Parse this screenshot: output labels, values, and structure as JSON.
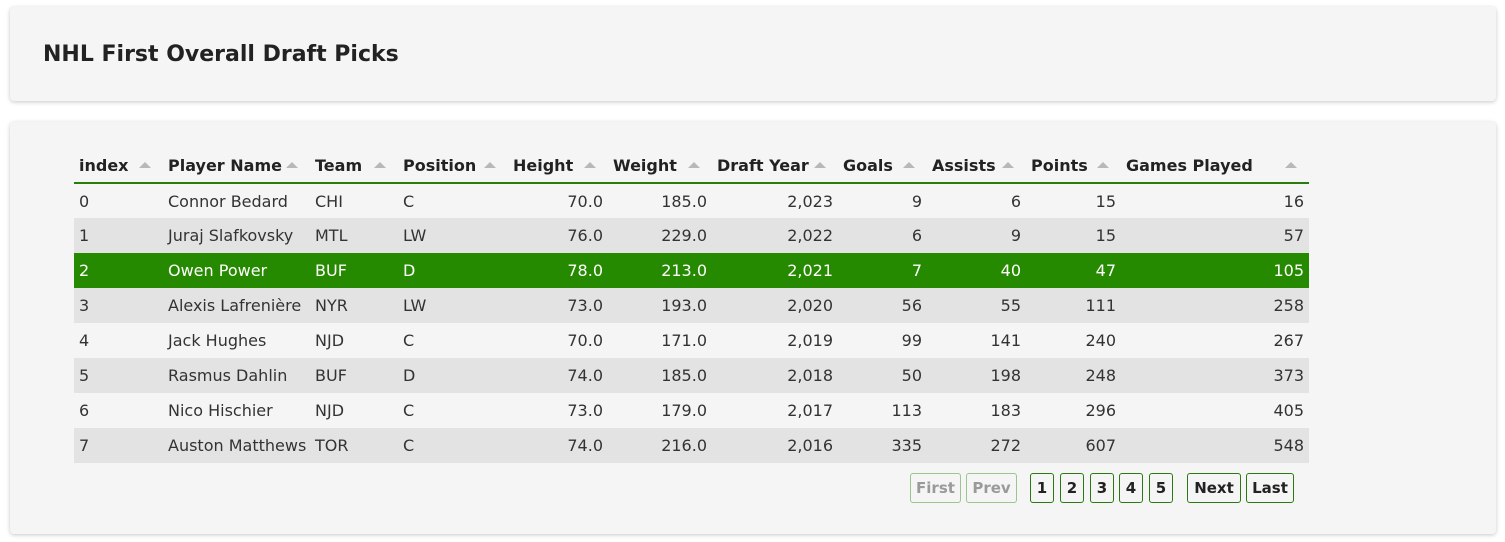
{
  "header": {
    "title": "NHL First Overall Draft Picks"
  },
  "table": {
    "columns": [
      "index",
      "Player Name",
      "Team",
      "Position",
      "Height",
      "Weight",
      "Draft Year",
      "Goals",
      "Assists",
      "Points",
      "Games Played"
    ],
    "rows": [
      [
        "0",
        "Connor Bedard",
        "CHI",
        "C",
        "70.0",
        "185.0",
        "2,023",
        "9",
        "6",
        "15",
        "16"
      ],
      [
        "1",
        "Juraj Slafkovsky",
        "MTL",
        "LW",
        "76.0",
        "229.0",
        "2,022",
        "6",
        "9",
        "15",
        "57"
      ],
      [
        "2",
        "Owen Power",
        "BUF",
        "D",
        "78.0",
        "213.0",
        "2,021",
        "7",
        "40",
        "47",
        "105"
      ],
      [
        "3",
        "Alexis Lafrenière",
        "NYR",
        "LW",
        "73.0",
        "193.0",
        "2,020",
        "56",
        "55",
        "111",
        "258"
      ],
      [
        "4",
        "Jack Hughes",
        "NJD",
        "C",
        "70.0",
        "171.0",
        "2,019",
        "99",
        "141",
        "240",
        "267"
      ],
      [
        "5",
        "Rasmus Dahlin",
        "BUF",
        "D",
        "74.0",
        "185.0",
        "2,018",
        "50",
        "198",
        "248",
        "373"
      ],
      [
        "6",
        "Nico Hischier",
        "NJD",
        "C",
        "73.0",
        "179.0",
        "2,017",
        "113",
        "183",
        "296",
        "405"
      ],
      [
        "7",
        "Auston Matthews",
        "TOR",
        "C",
        "74.0",
        "216.0",
        "2,016",
        "335",
        "272",
        "607",
        "548"
      ]
    ],
    "selected_row": 2
  },
  "pagination": {
    "first": "First",
    "prev": "Prev",
    "pages": [
      "1",
      "2",
      "3",
      "4",
      "5"
    ],
    "next": "Next",
    "last": "Last"
  },
  "colors": {
    "accent": "#268a00",
    "header_border": "#2a7a12",
    "row_alt": "#e3e3e3",
    "card_bg": "#f5f5f5"
  }
}
